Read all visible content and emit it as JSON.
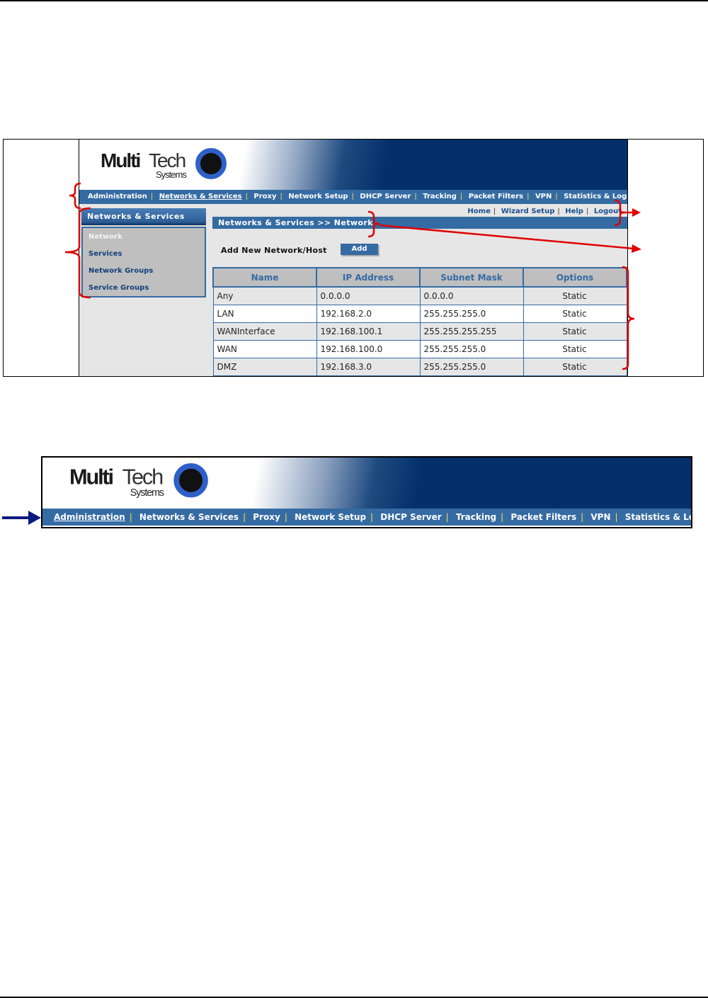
{
  "figure1": {
    "logo": {
      "multi": "Multi",
      "tech": "Tech",
      "systems": "Systems"
    },
    "nav": [
      "Administration",
      "Networks & Services",
      "Proxy",
      "Network Setup",
      "DHCP Server",
      "Tracking",
      "Packet Filters",
      "VPN",
      "Statistics & Logs"
    ],
    "nav_active": "Networks & Services",
    "sidebar": {
      "title": "Networks & Services",
      "items": [
        "Network",
        "Services",
        "Network Groups",
        "Service Groups"
      ]
    },
    "top_links": [
      "Home",
      "Wizard Setup",
      "Help",
      "Logout"
    ],
    "breadcrumb": "Networks & Services >> Network",
    "add_label": "Add New Network/Host",
    "add_button": "Add",
    "table": {
      "headers": [
        "Name",
        "IP Address",
        "Subnet Mask",
        "Options"
      ],
      "rows": [
        [
          "Any",
          "0.0.0.0",
          "0.0.0.0",
          "Static"
        ],
        [
          "LAN",
          "192.168.2.0",
          "255.255.255.0",
          "Static"
        ],
        [
          "WANInterface",
          "192.168.100.1",
          "255.255.255.255",
          "Static"
        ],
        [
          "WAN",
          "192.168.100.0",
          "255.255.255.0",
          "Static"
        ],
        [
          "DMZ",
          "192.168.3.0",
          "255.255.255.0",
          "Static"
        ]
      ]
    }
  },
  "figure2": {
    "logo": {
      "multi": "Multi",
      "tech": "Tech",
      "systems": "Systems"
    },
    "nav": [
      "Administration",
      "Networks & Services",
      "Proxy",
      "Network Setup",
      "DHCP Server",
      "Tracking",
      "Packet Filters",
      "VPN",
      "Statistics & Logs"
    ],
    "nav_active": "Administration"
  },
  "colors": {
    "nav_blue": "#356ba3",
    "banner_navy": "#04306a",
    "annotation_red": "#e00000",
    "arrow_navy": "#0a1a80"
  }
}
